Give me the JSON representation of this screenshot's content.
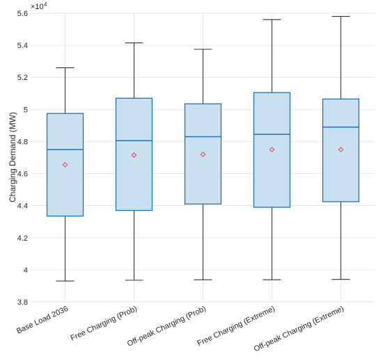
{
  "chart_data": {
    "type": "box",
    "ylabel": "Charging Demand (MW)",
    "y_multiplier_label": "×10",
    "y_multiplier_exp": "4",
    "ylim": [
      38000,
      56000
    ],
    "yticks": [
      38000,
      40000,
      42000,
      44000,
      46000,
      48000,
      50000,
      52000,
      54000,
      56000
    ],
    "ytick_labels": [
      "3.8",
      "4",
      "4.2",
      "4.4",
      "4.6",
      "4.8",
      "5",
      "5.2",
      "5.4",
      "5.6"
    ],
    "grid": true,
    "categories": [
      "Base Load 2036",
      "Free Charging (Prob)",
      "Off-peak Charging (Prob)",
      "Free Charging (Extreme)",
      "Off-peak Charging (Extreme)"
    ],
    "boxes": [
      {
        "min": 39300,
        "q1": 43350,
        "median": 47500,
        "q3": 49750,
        "max": 52600,
        "mean": 46550
      },
      {
        "min": 39350,
        "q1": 43700,
        "median": 48050,
        "q3": 50700,
        "max": 54150,
        "mean": 47150
      },
      {
        "min": 39380,
        "q1": 44100,
        "median": 48300,
        "q3": 50350,
        "max": 53750,
        "mean": 47200
      },
      {
        "min": 39380,
        "q1": 43900,
        "median": 48450,
        "q3": 51050,
        "max": 55600,
        "mean": 47500
      },
      {
        "min": 39400,
        "q1": 44250,
        "median": 48900,
        "q3": 50650,
        "max": 55800,
        "mean": 47500
      }
    ],
    "colors": {
      "box_fill": "#c8e0f0",
      "box_edge": "#1f73b7",
      "whisker": "#333333",
      "mean_marker": "#e0454a",
      "grid": "#e6e6e6"
    }
  }
}
